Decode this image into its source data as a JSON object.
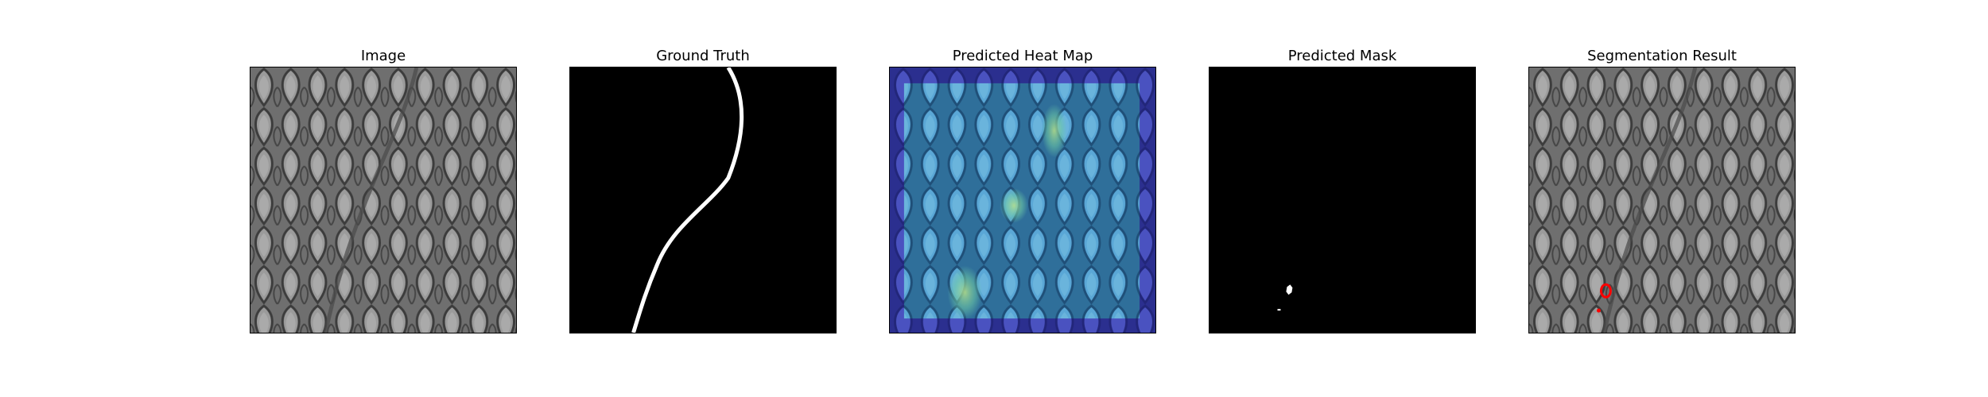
{
  "figure": {
    "panels": [
      {
        "title": "Image"
      },
      {
        "title": "Ground Truth"
      },
      {
        "title": "Predicted Heat Map"
      },
      {
        "title": "Predicted Mask"
      },
      {
        "title": "Segmentation Result"
      }
    ]
  },
  "colors": {
    "background": "#ffffff",
    "mask_background": "#000000",
    "mask_foreground": "#ffffff",
    "heat_low": "#3b3fa6",
    "heat_mid": "#4f9fd0",
    "heat_high": "#8fd0a0",
    "overlay_contour": "#ff0000",
    "fabric_base": "#7a7a7a"
  }
}
